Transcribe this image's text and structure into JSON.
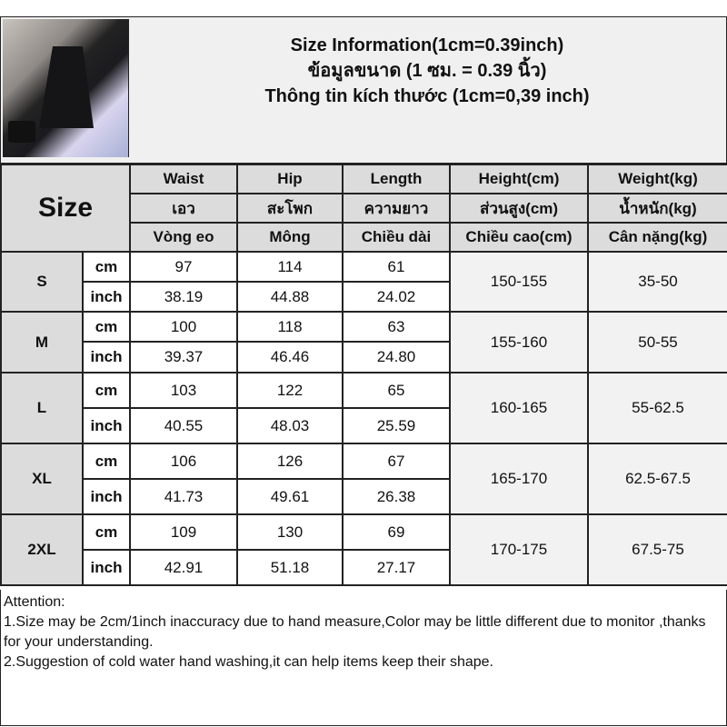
{
  "header": {
    "lines": [
      "Size Information(1cm=0.39inch)",
      "ข้อมูลขนาด (1 ซม. = 0.39 นิ้ว)",
      "Thông tin kích thước (1cm=0,39 inch)"
    ]
  },
  "table": {
    "size_label": "Size",
    "columns": [
      [
        "Waist",
        "เอว",
        "Vòng eo"
      ],
      [
        "Hip",
        "สะโพก",
        "Mông"
      ],
      [
        "Length",
        "ความยาว",
        "Chiều dài"
      ],
      [
        "Height(cm)",
        "ส่วนสูง(cm)",
        "Chiều cao(cm)"
      ],
      [
        "Weight(kg)",
        "น้ำหนัก(kg)",
        "Cân nặng(kg)"
      ]
    ],
    "units": [
      "cm",
      "inch"
    ],
    "rows": [
      {
        "size": "S",
        "cm": [
          "97",
          "114",
          "61"
        ],
        "inch": [
          "38.19",
          "44.88",
          "24.02"
        ],
        "height": "150-155",
        "weight": "35-50"
      },
      {
        "size": "M",
        "cm": [
          "100",
          "118",
          "63"
        ],
        "inch": [
          "39.37",
          "46.46",
          "24.80"
        ],
        "height": "155-160",
        "weight": "50-55"
      },
      {
        "size": "L",
        "cm": [
          "103",
          "122",
          "65"
        ],
        "inch": [
          "40.55",
          "48.03",
          "25.59"
        ],
        "height": "160-165",
        "weight": "55-62.5"
      },
      {
        "size": "XL",
        "cm": [
          "106",
          "126",
          "67"
        ],
        "inch": [
          "41.73",
          "49.61",
          "26.38"
        ],
        "height": "165-170",
        "weight": "62.5-67.5"
      },
      {
        "size": "2XL",
        "cm": [
          "109",
          "130",
          "69"
        ],
        "inch": [
          "42.91",
          "51.18",
          "27.17"
        ],
        "height": "170-175",
        "weight": "67.5-75"
      }
    ]
  },
  "attention": {
    "title": "Attention:",
    "lines": [
      "1.Size may be 2cm/1inch inaccuracy due to hand measure,Color may be little different due to monitor ,thanks for your understanding.",
      "2.Suggestion of cold water hand washing,it can help items keep their shape."
    ]
  }
}
